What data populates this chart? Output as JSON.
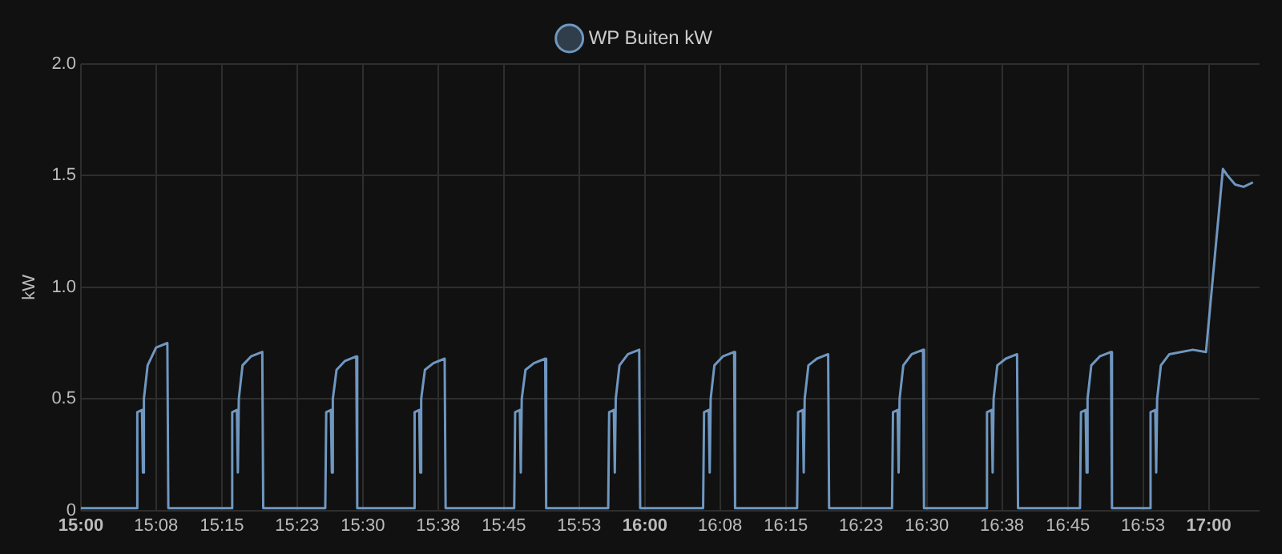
{
  "chart_data": {
    "type": "line",
    "ylabel": "kW",
    "legend": "top",
    "marker": "none",
    "line_style": "solid",
    "grid": true,
    "xlim": [
      15,
      17.09
    ],
    "ylim": [
      0,
      2
    ],
    "yticks": [
      0,
      0.5,
      {
        "value": 1,
        "label": "1.0"
      },
      1.5,
      {
        "value": 2,
        "label": "2.0"
      }
    ],
    "xticks": [
      {
        "value": 15,
        "label": "15:00"
      },
      {
        "value": 15.1333,
        "label": "15:08"
      },
      {
        "value": 15.25,
        "label": "15:15"
      },
      {
        "value": 15.3833,
        "label": "15:23"
      },
      {
        "value": 15.5,
        "label": "15:30"
      },
      {
        "value": 15.6333,
        "label": "15:38"
      },
      {
        "value": 15.75,
        "label": "15:45"
      },
      {
        "value": 15.8833,
        "label": "15:53"
      },
      {
        "value": 16,
        "label": "16:00"
      },
      {
        "value": 16.1333,
        "label": "16:08"
      },
      {
        "value": 16.25,
        "label": "16:15"
      },
      {
        "value": 16.3833,
        "label": "16:23"
      },
      {
        "value": 16.5,
        "label": "16:30"
      },
      {
        "value": 16.6333,
        "label": "16:38"
      },
      {
        "value": 16.75,
        "label": "16:45"
      },
      {
        "value": 16.8833,
        "label": "16:53"
      },
      {
        "value": 17,
        "label": "17:00"
      }
    ],
    "series": [
      {
        "name": "WP Buiten kW",
        "color": "#6f97c0",
        "x": [
          15,
          15.0983,
          15.1,
          15.1083,
          15.11,
          15.1117,
          15.1183,
          15.1333,
          15.1533,
          15.155,
          15.2666,
          15.2683,
          15.2766,
          15.2783,
          15.28,
          15.2866,
          15.3016,
          15.3216,
          15.3233,
          15.4333,
          15.435,
          15.4433,
          15.445,
          15.4467,
          15.4533,
          15.4683,
          15.4883,
          15.49,
          15.59,
          15.5917,
          15.6,
          15.6017,
          15.6034,
          15.61,
          15.625,
          15.645,
          15.6467,
          15.7683,
          15.77,
          15.7783,
          15.78,
          15.7817,
          15.7883,
          15.8033,
          15.8233,
          15.825,
          15.935,
          15.9367,
          15.945,
          15.9467,
          15.9484,
          15.955,
          15.97,
          15.99,
          15.9917,
          16.1033,
          16.105,
          16.1133,
          16.115,
          16.1167,
          16.1233,
          16.1383,
          16.1583,
          16.16,
          16.27,
          16.2717,
          16.28,
          16.2817,
          16.2834,
          16.29,
          16.305,
          16.325,
          16.3267,
          16.4383,
          16.44,
          16.4483,
          16.45,
          16.4517,
          16.4583,
          16.4733,
          16.4933,
          16.495,
          16.605,
          16.6067,
          16.615,
          16.6167,
          16.6184,
          16.625,
          16.64,
          16.66,
          16.6617,
          16.7716,
          16.7733,
          16.7816,
          16.7833,
          16.785,
          16.7916,
          16.8066,
          16.8266,
          16.8283,
          16.895,
          16.8967,
          16.905,
          16.9067,
          16.9084,
          16.915,
          16.93,
          16.9717,
          16.995,
          17.025,
          17.0333,
          17.0467,
          17.0617,
          17.0783
        ],
        "values": [
          0.01,
          0.01,
          0.44,
          0.45,
          0.17,
          0.5,
          0.65,
          0.73,
          0.75,
          0.01,
          0.01,
          0.44,
          0.45,
          0.17,
          0.5,
          0.65,
          0.69,
          0.71,
          0.01,
          0.01,
          0.44,
          0.45,
          0.17,
          0.5,
          0.63,
          0.67,
          0.69,
          0.01,
          0.01,
          0.44,
          0.45,
          0.17,
          0.5,
          0.63,
          0.66,
          0.68,
          0.01,
          0.01,
          0.44,
          0.45,
          0.17,
          0.5,
          0.63,
          0.66,
          0.68,
          0.01,
          0.01,
          0.44,
          0.45,
          0.17,
          0.5,
          0.65,
          0.7,
          0.72,
          0.01,
          0.01,
          0.44,
          0.45,
          0.17,
          0.5,
          0.65,
          0.69,
          0.71,
          0.01,
          0.01,
          0.44,
          0.45,
          0.17,
          0.5,
          0.65,
          0.68,
          0.7,
          0.01,
          0.01,
          0.44,
          0.45,
          0.17,
          0.5,
          0.65,
          0.7,
          0.72,
          0.01,
          0.01,
          0.44,
          0.45,
          0.17,
          0.5,
          0.65,
          0.68,
          0.7,
          0.01,
          0.01,
          0.44,
          0.45,
          0.17,
          0.5,
          0.65,
          0.69,
          0.71,
          0.01,
          0.01,
          0.44,
          0.45,
          0.17,
          0.5,
          0.65,
          0.7,
          0.72,
          0.71,
          1.53,
          1.5,
          1.46,
          1.45,
          1.47
        ]
      }
    ]
  }
}
